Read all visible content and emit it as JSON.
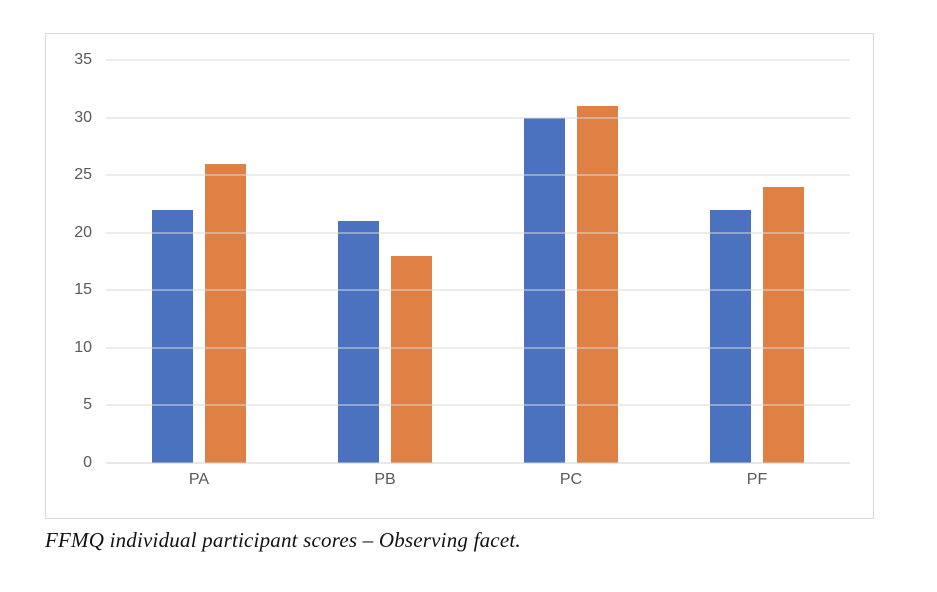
{
  "figure": {
    "caption": "FFMQ individual participant scores – Observing facet."
  },
  "chart_data": {
    "type": "bar",
    "categories": [
      "PA",
      "PB",
      "PC",
      "PF"
    ],
    "series": [
      {
        "name": "blue-series",
        "color": "#4a72be",
        "values": [
          22,
          21,
          30,
          22
        ]
      },
      {
        "name": "orange-series",
        "color": "#df8145",
        "values": [
          26,
          18,
          31,
          24
        ]
      }
    ],
    "title": "",
    "xlabel": "",
    "ylabel": "",
    "ylim": [
      0,
      35
    ],
    "yticks": [
      0,
      5,
      10,
      15,
      20,
      25,
      30,
      35
    ],
    "grid": true,
    "legend": false
  },
  "colors": {
    "frame_border": "#d9d9d9",
    "gridline": "#d9d9d9",
    "tick_text": "#595959",
    "background": "#ffffff"
  }
}
